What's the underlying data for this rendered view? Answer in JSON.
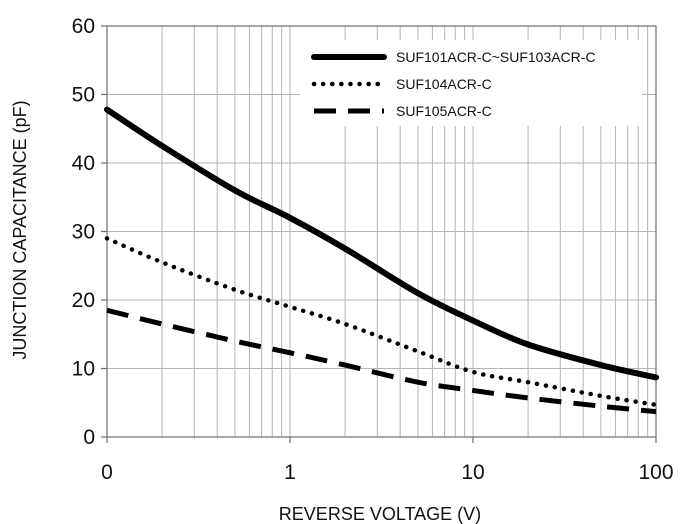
{
  "chart_data": {
    "type": "line",
    "xlabel": "REVERSE VOLTAGE (V)",
    "ylabel": "JUNCTION CAPACITANCE (pF)",
    "xscale": "log",
    "xlim": [
      0.1,
      100
    ],
    "ylim": [
      0,
      60
    ],
    "x_ticks": [
      {
        "value": 0.1,
        "label": "0"
      },
      {
        "value": 1,
        "label": "1"
      },
      {
        "value": 10,
        "label": "10"
      },
      {
        "value": 100,
        "label": "100"
      }
    ],
    "y_ticks": [
      0,
      10,
      20,
      30,
      40,
      50,
      60
    ],
    "grid": true,
    "legend_position": "top-right",
    "series": [
      {
        "name": "SUF101ACR-C~SUF103ACR-C",
        "style": "solid",
        "color": "#000000",
        "x": [
          0.1,
          0.2,
          0.5,
          1,
          2,
          5,
          10,
          20,
          50,
          100
        ],
        "y": [
          47.8,
          42.5,
          36,
          32,
          27.5,
          21,
          17,
          13.5,
          10.5,
          8.7
        ]
      },
      {
        "name": "SUF104ACR-C",
        "style": "dotted",
        "color": "#000000",
        "x": [
          0.1,
          0.2,
          0.5,
          1,
          2,
          5,
          10,
          20,
          50,
          100
        ],
        "y": [
          29,
          25.5,
          21.5,
          19,
          16.5,
          12.5,
          9.5,
          8,
          6,
          4.7
        ]
      },
      {
        "name": "SUF105ACR-C",
        "style": "dashed",
        "color": "#000000",
        "x": [
          0.1,
          0.2,
          0.5,
          1,
          2,
          5,
          10,
          20,
          50,
          100
        ],
        "y": [
          18.5,
          16.5,
          14,
          12.3,
          10.5,
          8,
          6.8,
          5.7,
          4.5,
          3.7
        ]
      }
    ]
  }
}
